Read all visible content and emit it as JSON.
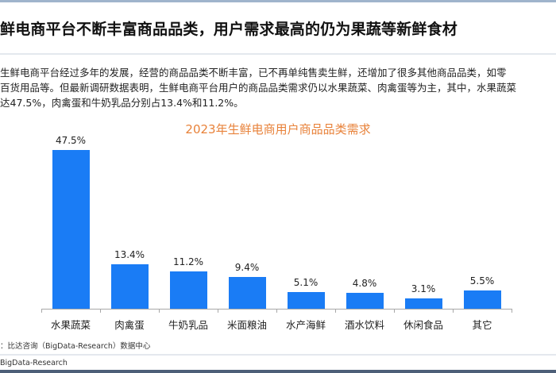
{
  "header": {
    "title": "鲜电商平台不断丰富商品品类，用户需求最高的仍为果蔬等新鲜食材"
  },
  "paragraph": {
    "lines": [
      "生鲜电商平台经过多年的发展，经营的商品品类不断丰富，已不再单纯售卖生鲜，还增加了很多其他商品品类，如零",
      "百货用品等。但最新调研数据表明，生鲜电商平台用户的商品品类需求仍以水果蔬菜、肉禽蛋等为主，其中，水果蔬菜",
      "达47.5%，肉禽蛋和牛奶乳品分别占13.4%和11.2%。"
    ]
  },
  "chart_data": {
    "type": "bar",
    "title": "2023年生鲜电商用户商品品类需求",
    "categories": [
      "水果蔬菜",
      "肉禽蛋",
      "牛奶乳品",
      "米面粮油",
      "水产海鲜",
      "酒水饮料",
      "休闲食品",
      "其它"
    ],
    "values": [
      47.5,
      13.4,
      11.2,
      9.4,
      5.1,
      4.8,
      3.1,
      5.5
    ],
    "labels": [
      "47.5%",
      "13.4%",
      "11.2%",
      "9.4%",
      "5.1%",
      "4.8%",
      "3.1%",
      "5.5%"
    ],
    "unit": "%",
    "xlabel": "",
    "ylabel": "",
    "ylim": [
      0,
      50
    ],
    "grid": false,
    "legend": "none",
    "bar_color": "#1a7cf5",
    "title_color": "#e8823a"
  },
  "footer": {
    "source": "：比达咨询（BigData-Research）数据中心",
    "brand": "BigData-Research"
  }
}
